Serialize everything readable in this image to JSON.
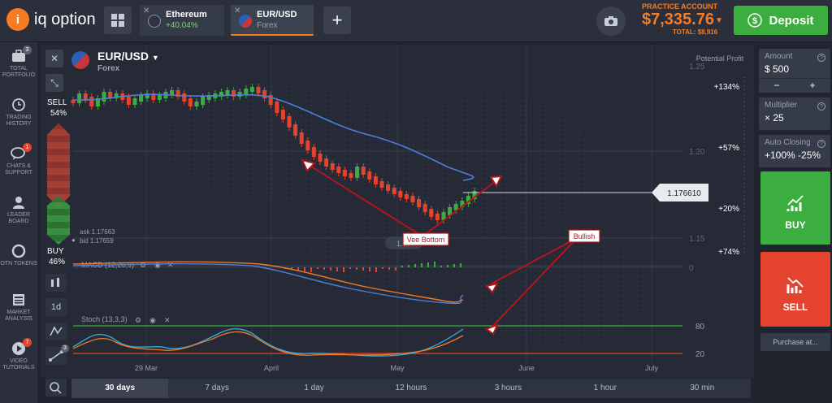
{
  "header": {
    "logo_text": "iq option",
    "tabs": [
      {
        "name": "Ethereum",
        "sub": "+40.04%"
      },
      {
        "name": "EUR/USD",
        "sub": "Forex"
      }
    ],
    "add_tab": "+",
    "account_label": "PRACTICE ACCOUNT",
    "balance": "$7,335.76",
    "total": "TOTAL: $8,916",
    "deposit_label": "Deposit"
  },
  "sidebar": {
    "items": [
      {
        "label": "TOTAL PORTFOLIO",
        "badge": "3"
      },
      {
        "label": "TRADING HISTORY",
        "badge": ""
      },
      {
        "label": "CHATS & SUPPORT",
        "badge": "1"
      },
      {
        "label": "LEADER BOARD",
        "badge": ""
      },
      {
        "label": "OTN TOKENS",
        "badge": ""
      },
      {
        "label": "MARKET ANALYSIS",
        "badge": ""
      },
      {
        "label": "VIDEO TUTORIALS",
        "badge": "7"
      }
    ]
  },
  "asset": {
    "pair": "EUR/USD",
    "type": "Forex",
    "sell_label": "SELL",
    "sell_pct": "54%",
    "buy_label": "BUY",
    "buy_pct": "46%",
    "ask": "ask 1.17663",
    "bid": "bid 1.17659",
    "current_price": "1.176610",
    "potential_profit": "Potential Profit",
    "profit_levels": [
      "+134%",
      "+57%",
      "+20%",
      "+74%"
    ],
    "price_axis": [
      "1.25",
      "1.20",
      "1.15"
    ],
    "price_tag_partial": "1.15"
  },
  "indicators": {
    "macd_label": "MACD (12,26,9)",
    "macd_zero": "0",
    "stoch_label": "Stoch (13,3,3)",
    "stoch_80": "80",
    "stoch_20": "20",
    "timeframe_btn": "1d",
    "tool_badge": "3"
  },
  "annotations": {
    "vee_bottom": "Vee Bottom",
    "bullish": "Bullish"
  },
  "time_axis": [
    "29 Mar",
    "April",
    "May",
    "June",
    "July"
  ],
  "bottom_bar": [
    "30 days",
    "7 days",
    "1 day",
    "12 hours",
    "3 hours",
    "1 hour",
    "30 min"
  ],
  "trade_panel": {
    "amount_label": "Amount",
    "amount_value": "$ 500",
    "minus": "−",
    "plus": "+",
    "multiplier_label": "Multiplier",
    "multiplier_value": "× 25",
    "auto_label": "Auto Closing",
    "auto_value": "+100% -25%",
    "buy_label": "BUY",
    "sell_label": "SELL",
    "purchase_label": "Purchase at..."
  },
  "colors": {
    "accent": "#f57c22",
    "buy": "#3cae3f",
    "sell": "#e4432d",
    "annotation": "#c0161e"
  }
}
